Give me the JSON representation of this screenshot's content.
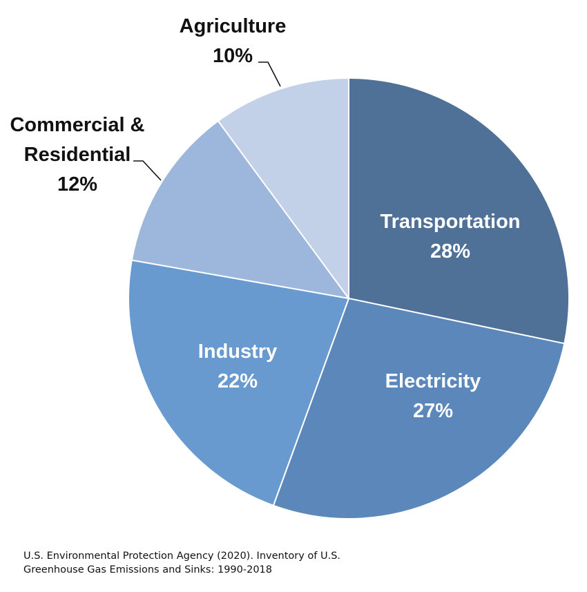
{
  "chart_data": {
    "type": "pie",
    "title": "",
    "start_angle_deg": 0,
    "direction": "clockwise",
    "slices": [
      {
        "label": "Transportation",
        "label_lines": [
          "Transportation"
        ],
        "value": 28,
        "value_label": "28%",
        "color": "#4F7198",
        "label_color": "#ffffff",
        "label_position": "inside"
      },
      {
        "label": "Electricity",
        "label_lines": [
          "Electricity"
        ],
        "value": 27,
        "value_label": "27%",
        "color": "#5B87BA",
        "label_color": "#ffffff",
        "label_position": "inside"
      },
      {
        "label": "Industry",
        "label_lines": [
          "Industry"
        ],
        "value": 22,
        "value_label": "22%",
        "color": "#6899CF",
        "label_color": "#ffffff",
        "label_position": "inside"
      },
      {
        "label": "Commercial & Residential",
        "label_lines": [
          "Commercial &",
          "Residential"
        ],
        "value": 12,
        "value_label": "12%",
        "color": "#9DB6DC",
        "label_color": "#111111",
        "label_position": "outside"
      },
      {
        "label": "Agriculture",
        "label_lines": [
          "Agriculture"
        ],
        "value": 10,
        "value_label": "10%",
        "color": "#C2D0E8",
        "label_color": "#111111",
        "label_position": "outside"
      }
    ],
    "legend": "none",
    "slice_border_color": "#ffffff"
  },
  "source": {
    "line1": "U.S. Environmental Protection Agency (2020). Inventory of U.S.",
    "line2": "Greenhouse Gas Emissions and Sinks: 1990-2018"
  }
}
